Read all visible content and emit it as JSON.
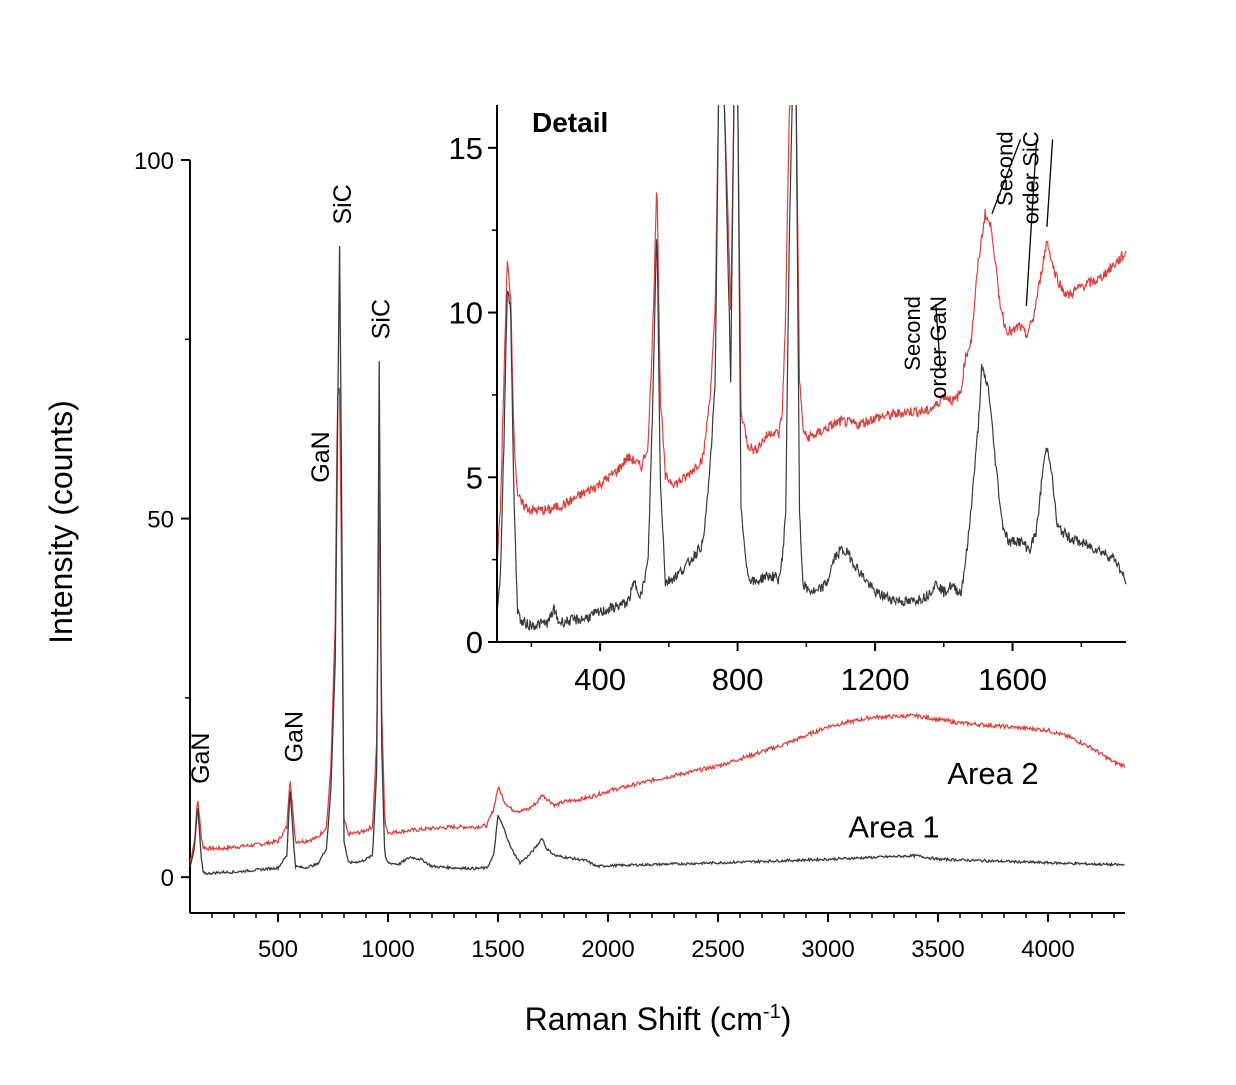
{
  "colors": {
    "area1": "#3a3a3a",
    "area2": "#d9413d",
    "axis": "#000000"
  },
  "chart_data": [
    {
      "type": "line",
      "xlabel": "Raman Shift (cm",
      "xlabel_sup": "-1",
      "xlabel_tail": ")",
      "ylabel": "Intensity (counts)",
      "xlim": [
        100,
        4350
      ],
      "ylim": [
        -5,
        100
      ],
      "xticks": [
        500,
        1000,
        1500,
        2000,
        2500,
        3000,
        3500,
        4000
      ],
      "xtick_labels": [
        "500",
        "1000",
        "1500",
        "2000",
        "2500",
        "3000",
        "3500",
        "4000"
      ],
      "yticks": [
        0,
        50,
        100
      ],
      "ytick_labels": [
        "0",
        "50",
        "100"
      ],
      "series": [
        {
          "name": "Area 1",
          "color": "#3a3a3a",
          "x": [
            100,
            120,
            135,
            150,
            160,
            180,
            250,
            300,
            400,
            500,
            540,
            555,
            570,
            580,
            620,
            680,
            720,
            740,
            760,
            770,
            780,
            790,
            800,
            820,
            880,
            930,
            950,
            960,
            970,
            985,
            1000,
            1050,
            1100,
            1150,
            1200,
            1300,
            1400,
            1450,
            1480,
            1500,
            1510,
            1530,
            1560,
            1600,
            1640,
            1680,
            1700,
            1720,
            1760,
            1800,
            1900,
            1950,
            2000,
            2500,
            3000,
            3400,
            3500,
            4000,
            4350
          ],
          "y": [
            1.5,
            4,
            10,
            3,
            0.6,
            0.5,
            0.7,
            0.7,
            1,
            1.3,
            3,
            12.5,
            5,
            1.5,
            1.3,
            1.8,
            4,
            12,
            30,
            60,
            88,
            50,
            5,
            2,
            2.2,
            3,
            16,
            72,
            20,
            3,
            2,
            1.8,
            2.8,
            2.5,
            1.5,
            1.3,
            1.2,
            1.3,
            3,
            8.5,
            8,
            6.5,
            4,
            2,
            3,
            4.5,
            5.5,
            4,
            3,
            2.8,
            2.3,
            1.5,
            1.6,
            2,
            2.5,
            3,
            2.5,
            2,
            1.7
          ]
        },
        {
          "name": "Area 2",
          "color": "#d9413d",
          "x": [
            100,
            120,
            135,
            150,
            160,
            180,
            250,
            300,
            400,
            500,
            540,
            555,
            570,
            580,
            620,
            680,
            720,
            740,
            760,
            770,
            780,
            790,
            800,
            820,
            880,
            930,
            950,
            960,
            970,
            985,
            1000,
            1100,
            1200,
            1300,
            1400,
            1450,
            1480,
            1500,
            1510,
            1530,
            1560,
            1600,
            1640,
            1680,
            1700,
            1720,
            1760,
            1800,
            1900,
            2000,
            2200,
            2500,
            2800,
            3000,
            3200,
            3400,
            3600,
            3800,
            4000,
            4100,
            4200,
            4300,
            4350
          ],
          "y": [
            2,
            5,
            11,
            6,
            4.2,
            4,
            4,
            4.2,
            4.5,
            5,
            7,
            14,
            8,
            5,
            5,
            5.5,
            7,
            15,
            35,
            67,
            68,
            40,
            8,
            6,
            6.3,
            7,
            20,
            54,
            25,
            8,
            6.2,
            6.5,
            6.8,
            7,
            7,
            7.2,
            9.5,
            12.5,
            12,
            10.5,
            9.5,
            9.2,
            9.5,
            10.5,
            11.5,
            11,
            10,
            10.5,
            11,
            12,
            13.5,
            15.5,
            18.5,
            21,
            22.3,
            22.5,
            21.5,
            21,
            20.5,
            19.5,
            18,
            16,
            15.5
          ]
        }
      ],
      "peak_labels": [
        {
          "text": "GaN",
          "x": 145,
          "y": 13
        },
        {
          "text": "GaN",
          "x": 570,
          "y": 16
        },
        {
          "text": "GaN",
          "x": 690,
          "y": 55
        },
        {
          "text": "SiC",
          "x": 790,
          "y": 91
        },
        {
          "text": "SiC",
          "x": 965,
          "y": 75
        }
      ],
      "area_labels": [
        {
          "text": "Area 2",
          "x": 3750,
          "y": 13
        },
        {
          "text": "Area 1",
          "x": 3300,
          "y": 5.5
        }
      ]
    },
    {
      "type": "line",
      "title": "Detail",
      "xlim": [
        100,
        1930
      ],
      "ylim": [
        0,
        16.3
      ],
      "xticks": [
        400,
        800,
        1200,
        1600
      ],
      "xtick_labels": [
        "400",
        "800",
        "1200",
        "1600"
      ],
      "yticks": [
        0,
        5,
        10,
        15
      ],
      "ytick_labels": [
        "0",
        "5",
        "10",
        "15"
      ],
      "series": [
        {
          "name": "Area 1",
          "color": "#3a3a3a",
          "x": [
            100,
            110,
            120,
            130,
            140,
            150,
            160,
            170,
            200,
            250,
            265,
            280,
            350,
            400,
            480,
            500,
            520,
            540,
            555,
            565,
            575,
            590,
            620,
            650,
            700,
            720,
            735,
            745,
            760,
            780,
            790,
            800,
            810,
            830,
            850,
            880,
            900,
            920,
            930,
            940,
            950,
            960,
            970,
            980,
            990,
            1000,
            1030,
            1060,
            1080,
            1100,
            1120,
            1150,
            1200,
            1250,
            1300,
            1350,
            1380,
            1400,
            1420,
            1450,
            1470,
            1500,
            1510,
            1530,
            1550,
            1570,
            1590,
            1610,
            1630,
            1650,
            1670,
            1690,
            1700,
            1710,
            1730,
            1760,
            1800,
            1850,
            1900,
            1930
          ],
          "y": [
            1,
            2,
            6,
            10.8,
            10,
            4,
            1,
            0.6,
            0.5,
            0.6,
            1,
            0.6,
            0.7,
            0.9,
            1.2,
            1.8,
            1.4,
            2.5,
            8,
            12.8,
            5,
            1.8,
            2,
            2.3,
            3,
            5.3,
            8,
            17,
            17,
            8,
            17,
            17,
            4,
            2,
            1.8,
            2,
            2,
            1.9,
            2.5,
            4,
            12,
            17,
            17,
            4,
            1.8,
            1.6,
            1.5,
            1.8,
            2.5,
            2.8,
            2.7,
            2.2,
            1.5,
            1.3,
            1.2,
            1.4,
            1.8,
            1.5,
            1.7,
            1.5,
            3,
            6.5,
            8.3,
            7.7,
            5.5,
            3.6,
            3,
            3.1,
            3,
            2.8,
            3.4,
            5.4,
            5.9,
            5.5,
            3.5,
            3.2,
            3,
            2.8,
            2.5,
            1.8
          ]
        },
        {
          "name": "Area 2",
          "color": "#d9413d",
          "x": [
            100,
            110,
            120,
            130,
            140,
            150,
            160,
            170,
            200,
            250,
            300,
            350,
            400,
            450,
            480,
            500,
            520,
            540,
            555,
            565,
            575,
            590,
            620,
            650,
            700,
            720,
            735,
            745,
            760,
            780,
            790,
            800,
            810,
            830,
            850,
            880,
            900,
            920,
            930,
            940,
            950,
            960,
            970,
            980,
            990,
            1000,
            1030,
            1060,
            1100,
            1150,
            1200,
            1250,
            1300,
            1350,
            1380,
            1400,
            1430,
            1450,
            1460,
            1480,
            1500,
            1520,
            1540,
            1560,
            1580,
            1600,
            1620,
            1640,
            1660,
            1680,
            1700,
            1720,
            1740,
            1760,
            1800,
            1850,
            1900,
            1930
          ],
          "y": [
            2.5,
            4,
            8,
            11.5,
            10.5,
            6,
            4.5,
            4.2,
            4,
            4,
            4.2,
            4.5,
            4.8,
            5.2,
            5.6,
            5.5,
            5.3,
            6,
            10,
            14.2,
            7.5,
            5,
            4.8,
            5,
            5.6,
            7.5,
            10,
            17,
            17,
            10,
            17,
            17,
            7,
            6,
            5.8,
            6.2,
            6.4,
            6.3,
            7,
            10,
            16,
            17,
            17,
            8,
            6.5,
            6.2,
            6.3,
            6.5,
            6.7,
            6.6,
            6.8,
            6.9,
            7,
            7,
            7.2,
            7.5,
            7.3,
            7.6,
            8.5,
            9.2,
            11.5,
            13,
            12.5,
            10.5,
            9.5,
            9.4,
            9.6,
            9.3,
            9.8,
            11,
            12.2,
            11.3,
            10.8,
            10.5,
            10.8,
            11,
            11.5,
            11.8
          ]
        }
      ],
      "annotations": [
        {
          "lines": [
            "Second",
            "order GaN"
          ],
          "x": 1330,
          "y": 10.5,
          "target_x": 1390,
          "target_y": 8.3
        },
        {
          "lines": [
            "Second",
            "order SiC"
          ],
          "x": 1600,
          "y": 15.5
        }
      ]
    }
  ]
}
